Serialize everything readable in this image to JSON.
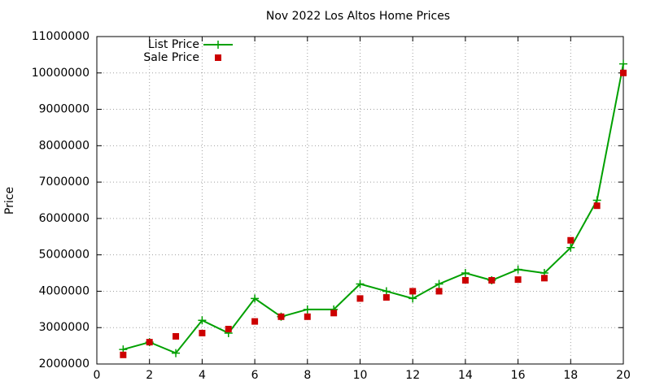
{
  "chart_data": {
    "type": "line",
    "title": "Nov 2022 Los Altos Home Prices",
    "y_label": "Price",
    "x": [
      1,
      2,
      3,
      4,
      5,
      6,
      7,
      8,
      9,
      10,
      11,
      12,
      13,
      14,
      15,
      16,
      17,
      18,
      19,
      20
    ],
    "series": [
      {
        "name": "List Price",
        "color": "#00a000",
        "mode": "lines+markers",
        "values": [
          2400000,
          2600000,
          2300000,
          3200000,
          2850000,
          3800000,
          3300000,
          3500000,
          3500000,
          4200000,
          4000000,
          3800000,
          4200000,
          4500000,
          4300000,
          4600000,
          4500000,
          5200000,
          6500000,
          10250000
        ]
      },
      {
        "name": "Sale Price",
        "color": "#cc0000",
        "mode": "markers",
        "values": [
          2250000,
          2600000,
          2760000,
          2850000,
          2960000,
          3170000,
          3300000,
          3300000,
          3400000,
          3800000,
          3830000,
          4000000,
          4000000,
          4300000,
          4300000,
          4320000,
          4360000,
          5400000,
          6350000,
          10000000
        ]
      }
    ],
    "xlim": [
      0,
      20
    ],
    "xticks": [
      0,
      2,
      4,
      6,
      8,
      10,
      12,
      14,
      16,
      18,
      20
    ],
    "ylim": [
      2000000,
      11000000
    ],
    "yticks": [
      2000000,
      3000000,
      4000000,
      5000000,
      6000000,
      7000000,
      8000000,
      9000000,
      10000000,
      11000000
    ],
    "grid": true,
    "legend": "top-left"
  }
}
